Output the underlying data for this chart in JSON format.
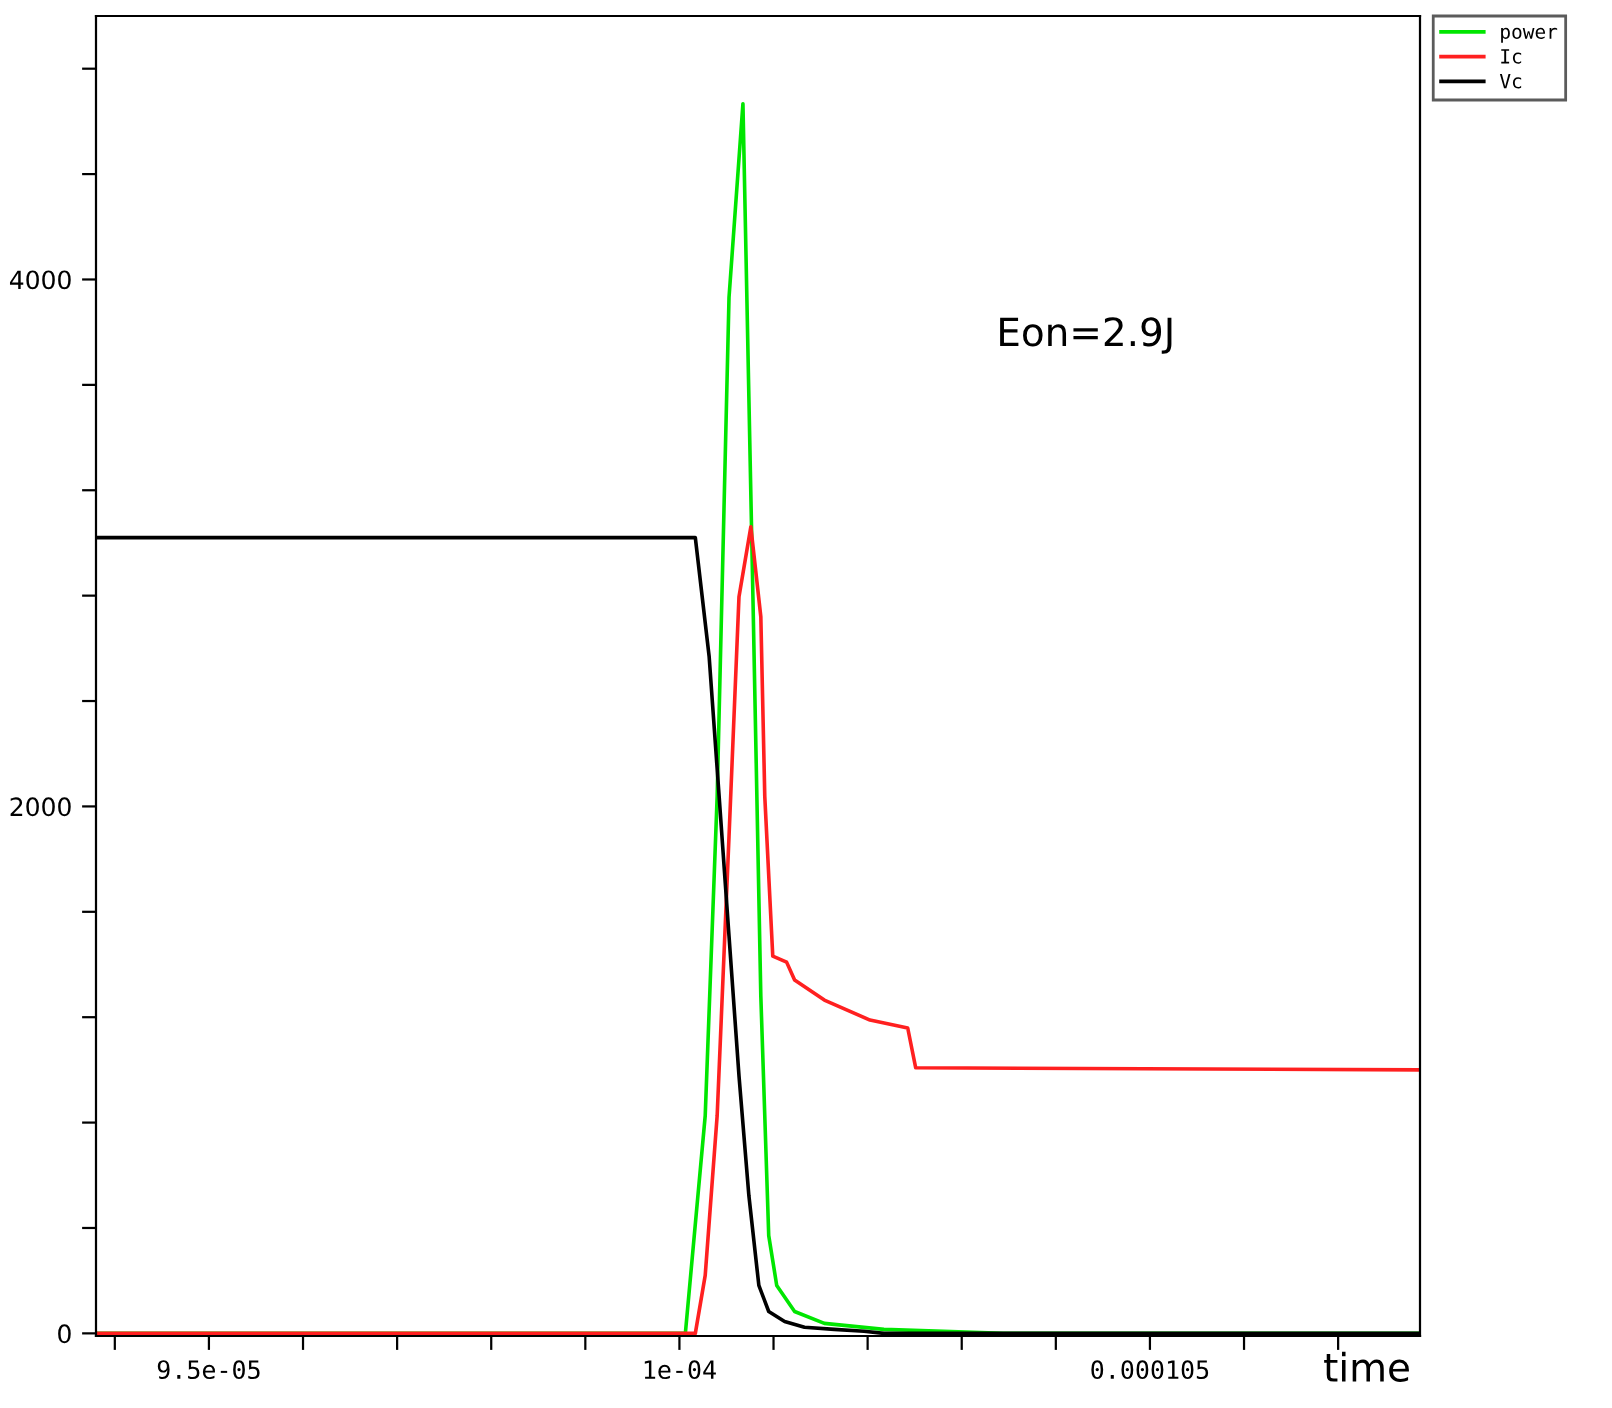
{
  "chart_data": {
    "type": "line",
    "xlabel": "time",
    "annotations": [
      "Eon=2.9J"
    ],
    "legend": "top right",
    "grid": false,
    "marker": "none",
    "line_style": "solid",
    "xlim": [
      9.38e-05,
      0.00010787
    ],
    "ylim": [
      -10,
      5000
    ],
    "xticks": [
      {
        "value": 9.4e-05,
        "label": null
      },
      {
        "value": 9.5e-05,
        "label": "9.5e-05"
      },
      {
        "value": 9.6e-05,
        "label": null
      },
      {
        "value": 9.7e-05,
        "label": null
      },
      {
        "value": 9.8e-05,
        "label": null
      },
      {
        "value": 9.9e-05,
        "label": null
      },
      {
        "value": 0.0001,
        "label": "1e-04"
      },
      {
        "value": 0.000101,
        "label": null
      },
      {
        "value": 0.000102,
        "label": null
      },
      {
        "value": 0.000103,
        "label": null
      },
      {
        "value": 0.000104,
        "label": null
      },
      {
        "value": 0.000105,
        "label": "0.000105"
      },
      {
        "value": 0.000106,
        "label": null
      },
      {
        "value": 0.000107,
        "label": null
      }
    ],
    "yticks": [
      0,
      {
        "value": 400,
        "label": null
      },
      {
        "value": 800,
        "label": null
      },
      {
        "value": 1200,
        "label": null
      },
      {
        "value": 1600,
        "label": null
      },
      2000,
      {
        "value": 2400,
        "label": null
      },
      {
        "value": 2800,
        "label": null
      },
      {
        "value": 3200,
        "label": null
      },
      {
        "value": 3600,
        "label": null
      },
      4000,
      {
        "value": 4400,
        "label": null
      },
      {
        "value": 4800,
        "label": null
      }
    ],
    "series": [
      {
        "name": "power",
        "color": "#00e600",
        "x": [
          9.38e-05,
          0.000100063,
          0.000100274,
          0.000100401,
          0.000100527,
          0.000100675,
          0.000100781,
          0.000100865,
          0.000100949,
          0.000101034,
          0.000101224,
          0.00010154,
          0.000102173,
          0.000102806,
          0.000103439,
          0.00010787
        ],
        "values": [
          0,
          0,
          826,
          2038,
          3932,
          4667,
          2796,
          1280,
          371,
          182,
          83,
          38,
          15,
          8,
          0,
          0
        ]
      },
      {
        "name": "Ic",
        "color": "#ff2020",
        "x": [
          9.38e-05,
          0.000100169,
          0.000100274,
          0.000100401,
          0.000100527,
          0.000100633,
          0.000100759,
          0.000100865,
          0.000100907,
          0.000100992,
          0.000101139,
          0.000101224,
          0.00010154,
          0.000102025,
          0.000102426,
          0.000102511,
          0.00010787
        ],
        "values": [
          0,
          0,
          220,
          826,
          1886,
          2796,
          3061,
          2720,
          2038,
          1432,
          1409,
          1341,
          1265,
          1189,
          1159,
          1008,
          1000
        ]
      },
      {
        "name": "Vc",
        "color": "#000000",
        "x": [
          9.38e-05,
          0.000100169,
          0.000100316,
          0.000100422,
          0.000100527,
          0.000100633,
          0.000100738,
          0.000100844,
          0.000100949,
          0.000101118,
          0.000101329,
          0.000101646,
          0.000101962,
          0.000102173,
          0.00010787
        ],
        "values": [
          3020,
          3020,
          2568,
          2038,
          1508,
          977,
          523,
          182,
          83,
          45,
          23,
          15,
          8,
          0,
          0
        ]
      }
    ]
  }
}
